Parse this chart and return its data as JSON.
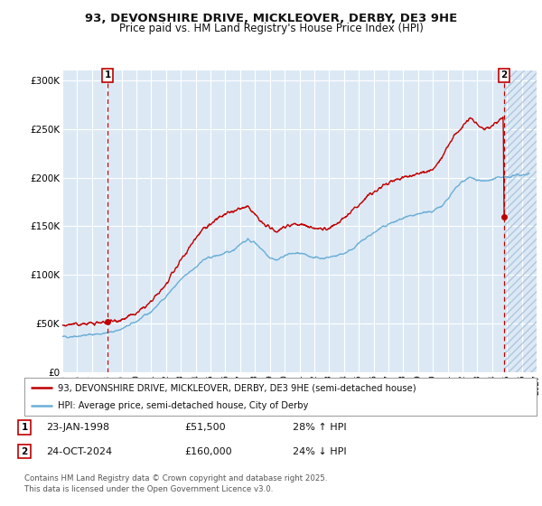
{
  "title_line1": "93, DEVONSHIRE DRIVE, MICKLEOVER, DERBY, DE3 9HE",
  "title_line2": "Price paid vs. HM Land Registry's House Price Index (HPI)",
  "x_start_year": 1995,
  "x_end_year": 2027,
  "ylim": [
    0,
    310000
  ],
  "yticks": [
    0,
    50000,
    100000,
    150000,
    200000,
    250000,
    300000
  ],
  "ytick_labels": [
    "£0",
    "£50K",
    "£100K",
    "£150K",
    "£200K",
    "£250K",
    "£300K"
  ],
  "hpi_color": "#6baed6",
  "price_color": "#c00000",
  "marker1_date": 1998.06,
  "marker1_price": 51500,
  "marker2_date": 2024.81,
  "marker2_price": 160000,
  "legend_line1": "93, DEVONSHIRE DRIVE, MICKLEOVER, DERBY, DE3 9HE (semi-detached house)",
  "legend_line2": "HPI: Average price, semi-detached house, City of Derby",
  "footnote": "Contains HM Land Registry data © Crown copyright and database right 2025.\nThis data is licensed under the Open Government Licence v3.0.",
  "bg_color": "#dce9f5",
  "grid_color": "#ffffff"
}
